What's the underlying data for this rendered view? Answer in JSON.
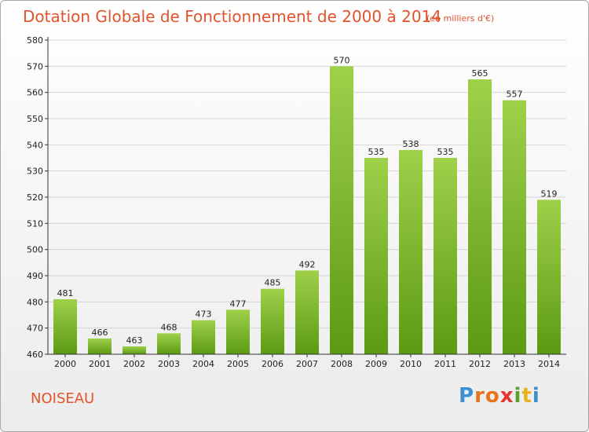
{
  "header": {
    "title": "Dotation Globale de Fonctionnement de 2000 à 2014",
    "subtitle": "(en milliers d'€)"
  },
  "footer": {
    "commune": "NOISEAU",
    "logo": [
      "P",
      "r",
      "o",
      "x",
      "i",
      "t",
      "i"
    ],
    "logo_colors": [
      "#3c8fd1",
      "#e8731c",
      "#e8731c",
      "#e83333",
      "#5aa02c",
      "#e8b21c",
      "#3c8fd1"
    ]
  },
  "colors": {
    "bar_light": "#9fd04a",
    "bar_dark": "#5c9a14",
    "grid": "#d4d4d4",
    "axis": "#333333",
    "title": "#e2532c"
  },
  "chart_data": {
    "type": "bar",
    "categories": [
      "2000",
      "2001",
      "2002",
      "2003",
      "2004",
      "2005",
      "2006",
      "2007",
      "2008",
      "2009",
      "2010",
      "2011",
      "2012",
      "2013",
      "2014"
    ],
    "values": [
      481,
      466,
      463,
      468,
      473,
      477,
      485,
      492,
      570,
      535,
      538,
      535,
      565,
      557,
      519
    ],
    "data_labels": [
      "481",
      "466",
      "463",
      "468",
      "473",
      "477",
      "485",
      "492",
      "570",
      "535",
      "538",
      "535",
      "565",
      "557",
      "519"
    ],
    "yticks": [
      "460",
      "470",
      "480",
      "490",
      "500",
      "510",
      "520",
      "530",
      "540",
      "550",
      "560",
      "570",
      "580"
    ],
    "ylim": [
      460,
      580
    ],
    "grid": true
  }
}
